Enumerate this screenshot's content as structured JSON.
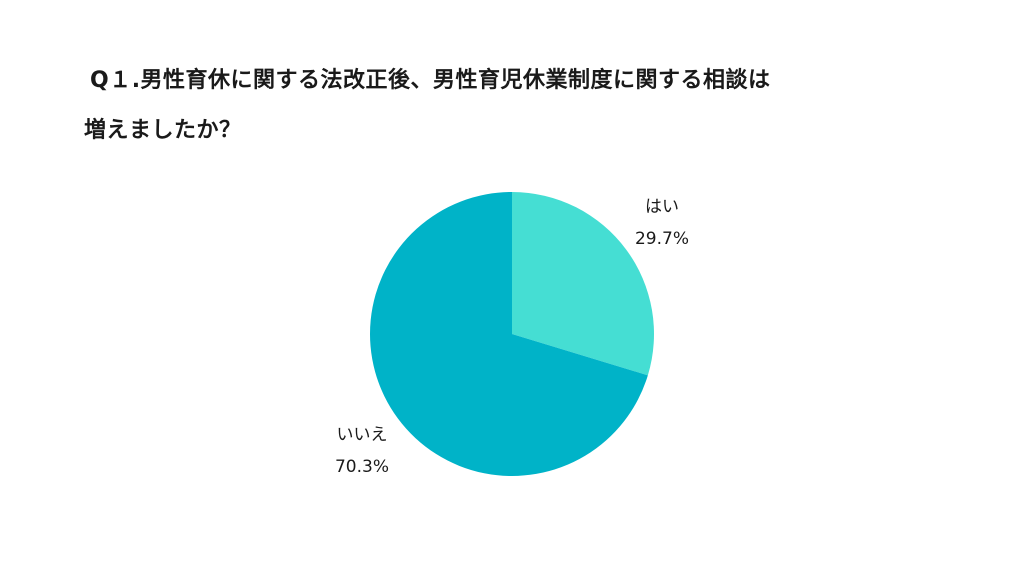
{
  "title": {
    "line1": "Q１.男性育休に関する法改正後、男性育児休業制度に関する相談は",
    "line2": "増えましたか？"
  },
  "chart_data": {
    "type": "pie",
    "slices": [
      {
        "label": "はい",
        "value": 29.7,
        "display": "29.7%",
        "color": "#45DED3"
      },
      {
        "label": "いいえ",
        "value": 70.3,
        "display": "70.3%",
        "color": "#00B3C8"
      }
    ],
    "start_angle": "12 o'clock",
    "direction": "clockwise"
  }
}
